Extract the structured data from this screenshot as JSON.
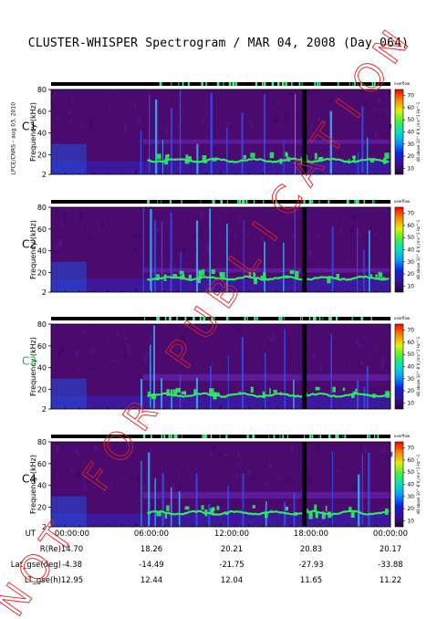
{
  "title": "CLUSTER-WHISPER Spectrogram / MAR 04, 2008 (Day 064)",
  "side_credit": "LPCE/CNRS - aug 03, 2010",
  "watermark": "NOT FOR PUBLICATION",
  "colors": {
    "background_purple": "#4b0a6e",
    "band_blue": "#2b3cc8",
    "band_green": "#30e868",
    "black_band": "#000000",
    "watermark": "#e02020",
    "c3_label": "#20b850"
  },
  "chart_data": [
    {
      "type": "heatmap",
      "spacecraft": "C1",
      "ylabel": "Frequency (kHz)",
      "ylim": [
        2,
        80
      ],
      "yticks": [
        "80",
        "60",
        "40",
        "20",
        "2"
      ],
      "colorbar_label": "dB above 10^-8 V_rms^2 Hz^-1",
      "colorbar_ticks": [
        "70",
        "60",
        "50",
        "40",
        "30",
        "20",
        "10"
      ],
      "colorbar_top": "overflow",
      "upper_band_khz": [
        30,
        34
      ],
      "plasma_line_khz": [
        13,
        17
      ]
    },
    {
      "type": "heatmap",
      "spacecraft": "C2",
      "ylabel": "Frequency (kHz)",
      "ylim": [
        2,
        80
      ],
      "yticks": [
        "80",
        "60",
        "40",
        "20",
        "2"
      ],
      "colorbar_label": "dB above 10^-8 V_rms^2 Hz^-1",
      "colorbar_ticks": [
        "70",
        "60",
        "50",
        "40",
        "30",
        "20",
        "10"
      ],
      "colorbar_top": "overflow",
      "upper_band_khz": [
        20,
        24
      ],
      "plasma_line_khz": [
        13,
        17
      ]
    },
    {
      "type": "heatmap",
      "spacecraft": "C3",
      "ylabel": "Frequency (kHz)",
      "ylim": [
        2,
        80
      ],
      "yticks": [
        "80",
        "60",
        "40",
        "20",
        "2"
      ],
      "colorbar_label": "dB above 10^-8 V_rms^2 Hz^-1",
      "colorbar_ticks": [
        "70",
        "60",
        "50",
        "40",
        "30",
        "20",
        "10"
      ],
      "colorbar_top": "overflow",
      "upper_band_khz": [
        28,
        34
      ],
      "plasma_line_khz": [
        13,
        17
      ]
    },
    {
      "type": "heatmap",
      "spacecraft": "C4",
      "ylabel": "Frequency (kHz)",
      "ylim": [
        2,
        80
      ],
      "yticks": [
        "80",
        "60",
        "40",
        "20",
        "2"
      ],
      "colorbar_label": "dB above 10^-8 V_rms^2 Hz^-1",
      "colorbar_ticks": [
        "70",
        "60",
        "50",
        "40",
        "30",
        "20",
        "10"
      ],
      "colorbar_top": "overflow",
      "upper_band_khz": [
        28,
        34
      ],
      "plasma_line_khz": [
        13,
        17
      ]
    }
  ],
  "x_axis": {
    "ut_label": "UT",
    "ticks": [
      "00:00:00",
      "06:00:00",
      "12:00:00",
      "18:00:00",
      "00:00:00"
    ],
    "range_hours": [
      0,
      24
    ]
  },
  "orbit_rows": [
    {
      "label": "R(Re)",
      "values": [
        "14.70",
        "18.26",
        "20.21",
        "20.83",
        "20.17"
      ]
    },
    {
      "label": "Lat_gse(deg)",
      "values": [
        "-4.38",
        "-14.49",
        "-21.75",
        "-27.93",
        "-33.88"
      ]
    },
    {
      "label": "LT_gse(h)",
      "values": [
        "12.95",
        "12.44",
        "12.04",
        "11.65",
        "11.22"
      ]
    }
  ]
}
